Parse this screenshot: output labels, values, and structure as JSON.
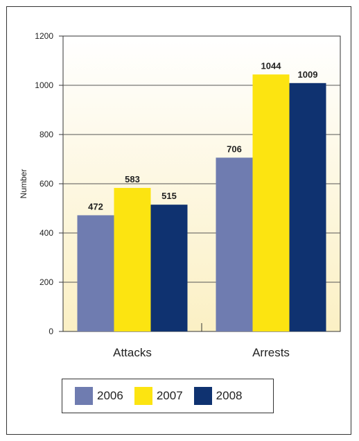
{
  "chart_data": {
    "type": "bar",
    "categories": [
      "Attacks",
      "Arrests"
    ],
    "series": [
      {
        "name": "2006",
        "values": [
          472,
          706
        ],
        "color": "#6f7cb0"
      },
      {
        "name": "2007",
        "values": [
          583,
          1044
        ],
        "color": "#fce411"
      },
      {
        "name": "2008",
        "values": [
          515,
          1009
        ],
        "color": "#0f3270"
      }
    ],
    "ylabel": "Number",
    "ylim": [
      0,
      1200
    ],
    "yticks": [
      0,
      200,
      400,
      600,
      800,
      1000,
      1200
    ],
    "grid": true,
    "legend_position": "bottom",
    "plot_background": "gradient white to pale yellow"
  }
}
